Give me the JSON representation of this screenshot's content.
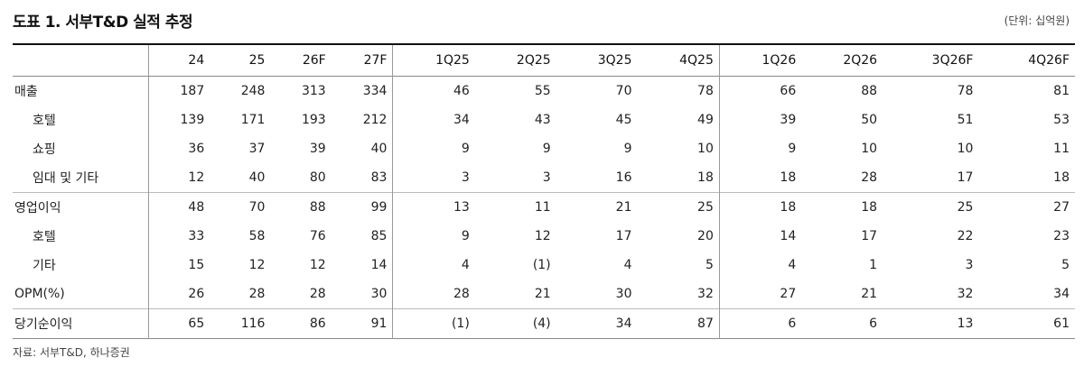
{
  "title": "도표 1. 서부T&D 실적 추정",
  "unit": "(단위: 십억원)",
  "source": "자료: 서부T&D, 하나증권",
  "columns": [
    "24",
    "25",
    "26F",
    "27F",
    "1Q25",
    "2Q25",
    "3Q25",
    "4Q25",
    "1Q26",
    "2Q26",
    "3Q26F",
    "4Q26F"
  ],
  "rows": [
    {
      "label": "매출",
      "values": [
        "187",
        "248",
        "313",
        "334",
        "46",
        "55",
        "70",
        "78",
        "66",
        "88",
        "78",
        "81"
      ]
    },
    {
      "label": "호텔",
      "values": [
        "139",
        "171",
        "193",
        "212",
        "34",
        "43",
        "45",
        "49",
        "39",
        "50",
        "51",
        "53"
      ]
    },
    {
      "label": "쇼핑",
      "values": [
        "36",
        "37",
        "39",
        "40",
        "9",
        "9",
        "9",
        "10",
        "9",
        "10",
        "10",
        "11"
      ]
    },
    {
      "label": "임대 및 기타",
      "values": [
        "12",
        "40",
        "80",
        "83",
        "3",
        "3",
        "16",
        "18",
        "18",
        "28",
        "17",
        "18"
      ]
    },
    {
      "label": "영업이익",
      "values": [
        "48",
        "70",
        "88",
        "99",
        "13",
        "11",
        "21",
        "25",
        "18",
        "18",
        "25",
        "27"
      ]
    },
    {
      "label": "호텔",
      "values": [
        "33",
        "58",
        "76",
        "85",
        "9",
        "12",
        "17",
        "20",
        "14",
        "17",
        "22",
        "23"
      ]
    },
    {
      "label": "기타",
      "values": [
        "15",
        "12",
        "12",
        "14",
        "4",
        "(1)",
        "4",
        "5",
        "4",
        "1",
        "3",
        "5"
      ]
    },
    {
      "label": "OPM(%)",
      "values": [
        "26",
        "28",
        "28",
        "30",
        "28",
        "21",
        "30",
        "32",
        "27",
        "21",
        "32",
        "34"
      ]
    },
    {
      "label": "당기순이익",
      "values": [
        "65",
        "116",
        "86",
        "91",
        "(1)",
        "(4)",
        "34",
        "87",
        "6",
        "6",
        "13",
        "61"
      ]
    }
  ]
}
